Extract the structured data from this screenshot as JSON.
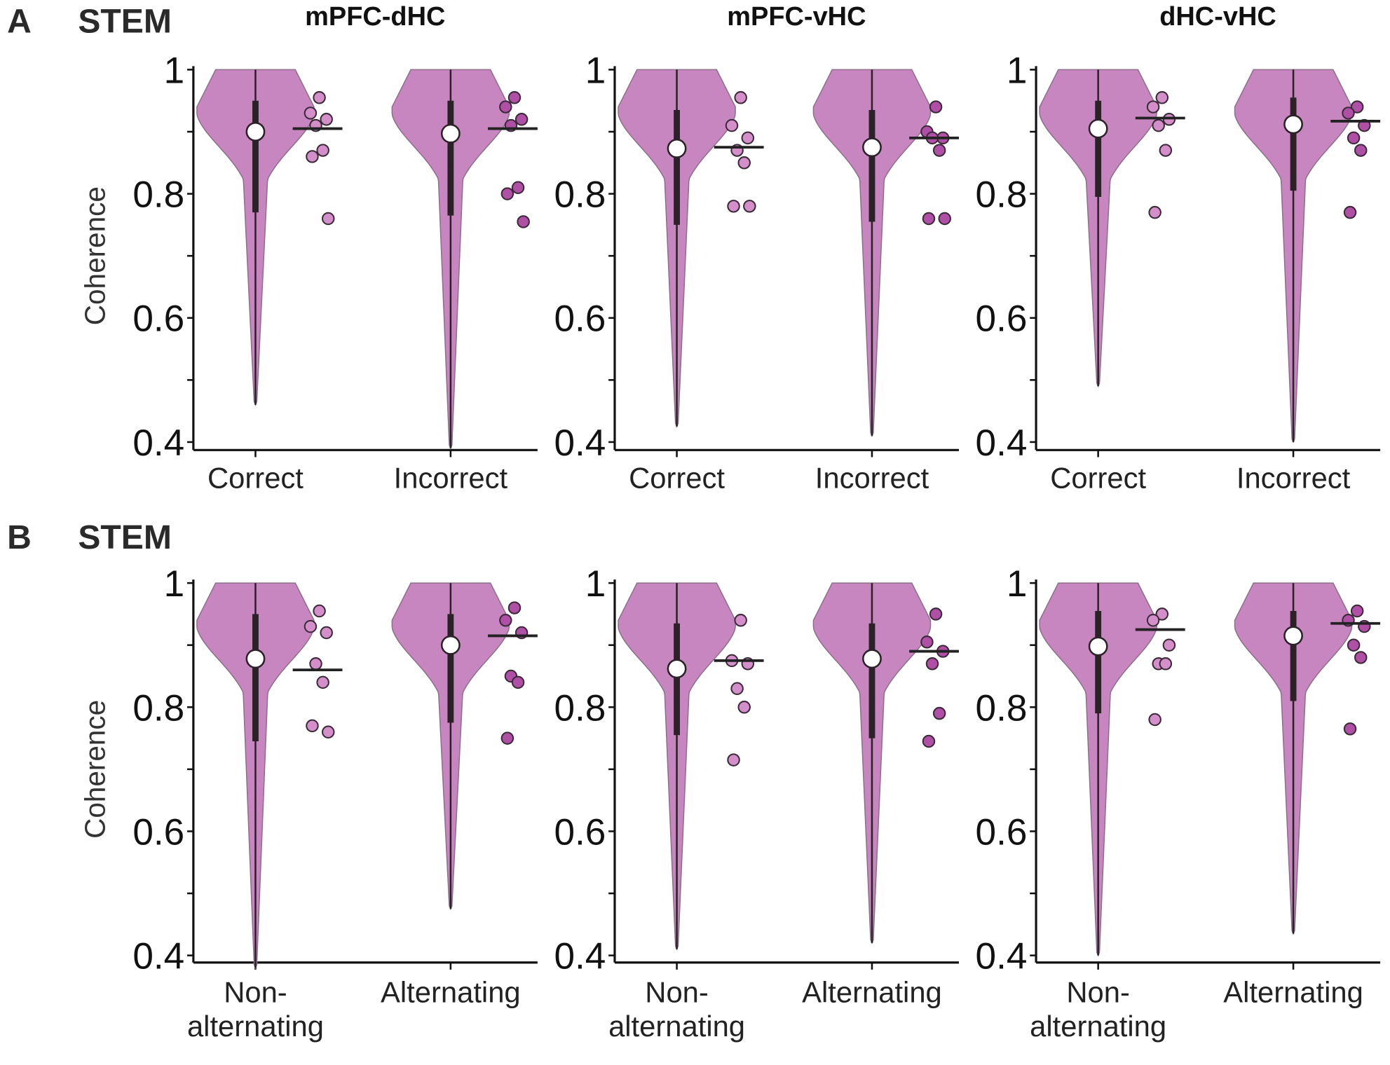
{
  "rows": [
    {
      "letter": "A",
      "title": "STEM"
    },
    {
      "letter": "B",
      "title": "STEM"
    }
  ],
  "colors": {
    "violin": "#c886c0",
    "violin_edge": "#8c6f8a",
    "dot_light": "#d48fcb",
    "dot_dark": "#b04fa6",
    "box": "#2b2228"
  },
  "chart_data": [
    {
      "type": "violin",
      "row": 0,
      "title": "mPFC-dHC",
      "ylabel": "Coherence",
      "ylim": [
        0.4,
        1
      ],
      "yticks": [
        "1",
        "0.8",
        "0.6",
        "0.4"
      ],
      "groups": [
        {
          "label": [
            "Correct"
          ],
          "median": 0.9,
          "q1": 0.77,
          "q3": 0.95,
          "min": 0.46,
          "mean": 0.905,
          "points": [
            0.955,
            0.93,
            0.92,
            0.91,
            0.87,
            0.86,
            0.76
          ]
        },
        {
          "label": [
            "Incorrect"
          ],
          "median": 0.897,
          "q1": 0.765,
          "q3": 0.95,
          "min": 0.39,
          "mean": 0.905,
          "points": [
            0.955,
            0.94,
            0.92,
            0.91,
            0.81,
            0.8,
            0.755
          ]
        }
      ]
    },
    {
      "type": "violin",
      "row": 0,
      "title": "mPFC-vHC",
      "ylabel": "",
      "ylim": [
        0.4,
        1
      ],
      "yticks": [
        "1",
        "0.8",
        "0.6",
        "0.4"
      ],
      "groups": [
        {
          "label": [
            "Correct"
          ],
          "median": 0.873,
          "q1": 0.75,
          "q3": 0.935,
          "min": 0.425,
          "mean": 0.875,
          "points": [
            0.955,
            0.91,
            0.89,
            0.87,
            0.85,
            0.78,
            0.78
          ]
        },
        {
          "label": [
            "Incorrect"
          ],
          "median": 0.875,
          "q1": 0.755,
          "q3": 0.935,
          "min": 0.41,
          "mean": 0.89,
          "points": [
            0.94,
            0.9,
            0.89,
            0.89,
            0.87,
            0.76,
            0.76
          ]
        }
      ]
    },
    {
      "type": "violin",
      "row": 0,
      "title": "dHC-vHC",
      "ylabel": "",
      "ylim": [
        0.4,
        1
      ],
      "yticks": [
        "1",
        "0.8",
        "0.6",
        "0.4"
      ],
      "groups": [
        {
          "label": [
            "Correct"
          ],
          "median": 0.905,
          "q1": 0.795,
          "q3": 0.95,
          "min": 0.49,
          "mean": 0.922,
          "points": [
            0.955,
            0.94,
            0.92,
            0.91,
            0.87,
            0.77
          ]
        },
        {
          "label": [
            "Incorrect"
          ],
          "median": 0.912,
          "q1": 0.805,
          "q3": 0.955,
          "min": 0.4,
          "mean": 0.917,
          "points": [
            0.94,
            0.93,
            0.91,
            0.89,
            0.87,
            0.77
          ]
        }
      ]
    },
    {
      "type": "violin",
      "row": 1,
      "title": "",
      "ylabel": "Coherence",
      "ylim": [
        0.4,
        1
      ],
      "yticks": [
        "1",
        "0.8",
        "0.6",
        "0.4"
      ],
      "groups": [
        {
          "label": [
            "Non-",
            "alternating"
          ],
          "median": 0.878,
          "q1": 0.745,
          "q3": 0.95,
          "min": 0.38,
          "mean": 0.86,
          "points": [
            0.955,
            0.93,
            0.92,
            0.87,
            0.84,
            0.77,
            0.76
          ]
        },
        {
          "label": [
            "Alternating"
          ],
          "median": 0.9,
          "q1": 0.775,
          "q3": 0.95,
          "min": 0.475,
          "mean": 0.915,
          "points": [
            0.96,
            0.94,
            0.92,
            0.85,
            0.84,
            0.75
          ]
        }
      ]
    },
    {
      "type": "violin",
      "row": 1,
      "title": "",
      "ylabel": "",
      "ylim": [
        0.4,
        1
      ],
      "yticks": [
        "1",
        "0.8",
        "0.6",
        "0.4"
      ],
      "groups": [
        {
          "label": [
            "Non-",
            "alternating"
          ],
          "median": 0.862,
          "q1": 0.755,
          "q3": 0.935,
          "min": 0.41,
          "mean": 0.875,
          "points": [
            0.94,
            0.875,
            0.87,
            0.83,
            0.8,
            0.715
          ]
        },
        {
          "label": [
            "Alternating"
          ],
          "median": 0.878,
          "q1": 0.75,
          "q3": 0.935,
          "min": 0.42,
          "mean": 0.89,
          "points": [
            0.95,
            0.905,
            0.89,
            0.87,
            0.79,
            0.745
          ]
        }
      ]
    },
    {
      "type": "violin",
      "row": 1,
      "title": "",
      "ylabel": "",
      "ylim": [
        0.4,
        1
      ],
      "yticks": [
        "1",
        "0.8",
        "0.6",
        "0.4"
      ],
      "groups": [
        {
          "label": [
            "Non-",
            "alternating"
          ],
          "median": 0.898,
          "q1": 0.79,
          "q3": 0.955,
          "min": 0.4,
          "mean": 0.925,
          "points": [
            0.95,
            0.94,
            0.9,
            0.87,
            0.87,
            0.78
          ]
        },
        {
          "label": [
            "Alternating"
          ],
          "median": 0.915,
          "q1": 0.81,
          "q3": 0.955,
          "min": 0.435,
          "mean": 0.935,
          "points": [
            0.955,
            0.94,
            0.93,
            0.9,
            0.88,
            0.765
          ]
        }
      ]
    }
  ]
}
